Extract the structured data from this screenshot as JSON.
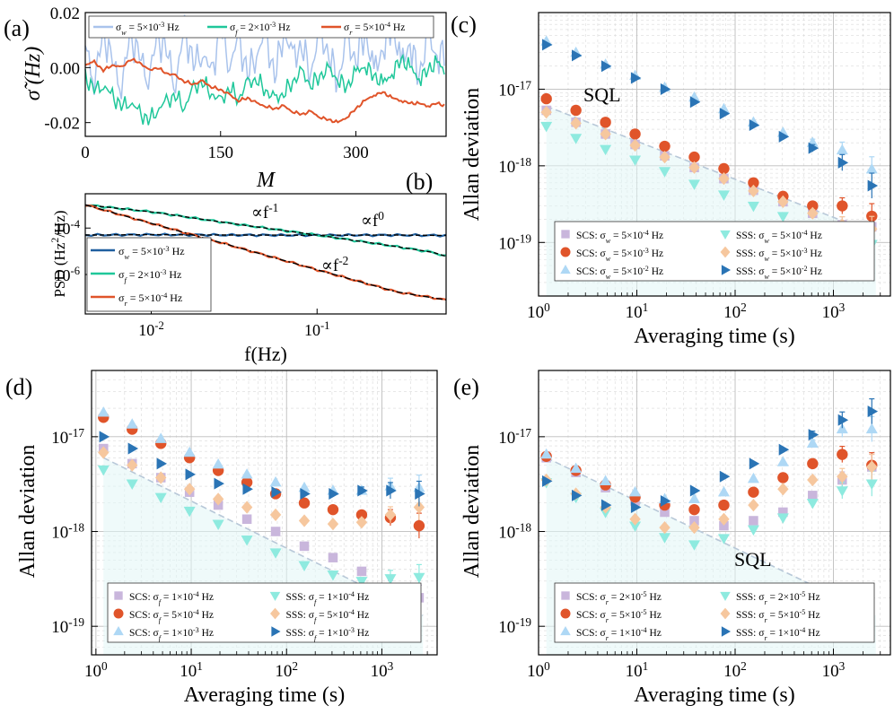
{
  "chart_data": [
    {
      "panel": "a",
      "type": "line",
      "panel_label": "(a)",
      "xlabel": "M",
      "ylabel": "σ̃ (Hz)",
      "xlim": [
        0,
        400
      ],
      "ylim": [
        -0.025,
        0.02
      ],
      "xticks": [
        0,
        150,
        300
      ],
      "yticks": [
        0.02,
        0.0,
        -0.02
      ],
      "xtick_labels": [
        "0",
        "150",
        "300"
      ],
      "ytick_labels": [
        "0.02",
        "0.00",
        "-0.02"
      ],
      "legend": [
        "σw = 5×10⁻³ Hz",
        "σf = 2×10⁻³ Hz",
        "σr = 5×10⁻⁴ Hz"
      ],
      "series": [
        {
          "name": "σw = 5×10⁻³ Hz",
          "color": "#a9c3ec",
          "x": [
            0,
            10,
            20,
            30,
            40,
            50,
            60,
            70,
            80,
            90,
            100,
            110,
            120,
            130,
            140,
            150,
            160,
            170,
            180,
            190,
            200,
            210,
            220,
            230,
            240,
            250,
            260,
            270,
            280,
            290,
            300,
            310,
            320,
            330,
            340,
            350,
            360,
            370,
            380,
            390,
            400
          ],
          "y": [
            0.008,
            -0.004,
            0.012,
            0.002,
            -0.006,
            0.011,
            0.004,
            -0.003,
            0.01,
            0.006,
            -0.005,
            0.013,
            0.001,
            0.007,
            -0.004,
            0.015,
            0.002,
            0.009,
            -0.002,
            0.006,
            0.011,
            -0.003,
            0.014,
            0.003,
            0.008,
            -0.001,
            0.012,
            0.005,
            -0.004,
            0.009,
            0.003,
            0.013,
            -0.002,
            0.007,
            0.016,
            0.001,
            0.009,
            -0.003,
            0.011,
            0.004,
            0.006
          ]
        },
        {
          "name": "σf = 2×10⁻³ Hz",
          "color": "#1fc79a",
          "x": [
            0,
            10,
            20,
            30,
            40,
            50,
            60,
            70,
            80,
            90,
            100,
            110,
            120,
            130,
            140,
            150,
            160,
            170,
            180,
            190,
            200,
            210,
            220,
            230,
            240,
            250,
            260,
            270,
            280,
            290,
            300,
            310,
            320,
            330,
            340,
            350,
            360,
            370,
            380,
            390,
            400
          ],
          "y": [
            -0.004,
            -0.008,
            -0.006,
            -0.011,
            -0.014,
            -0.012,
            -0.017,
            -0.019,
            -0.015,
            -0.013,
            -0.01,
            -0.014,
            -0.008,
            -0.005,
            -0.009,
            -0.013,
            -0.007,
            -0.011,
            -0.006,
            -0.004,
            -0.008,
            -0.012,
            -0.009,
            -0.005,
            -0.002,
            -0.006,
            -0.003,
            -0.001,
            -0.004,
            -0.007,
            -0.002,
            0.001,
            -0.003,
            -0.006,
            -0.002,
            0.003,
            0.0,
            -0.004,
            -0.001,
            0.002,
            -0.002
          ]
        },
        {
          "name": "σr = 5×10⁻⁴ Hz",
          "color": "#e0542a",
          "x": [
            0,
            10,
            20,
            30,
            40,
            50,
            60,
            70,
            80,
            90,
            100,
            110,
            120,
            130,
            140,
            150,
            160,
            170,
            180,
            190,
            200,
            210,
            220,
            230,
            240,
            250,
            260,
            270,
            280,
            290,
            300,
            310,
            320,
            330,
            340,
            350,
            360,
            370,
            380,
            390,
            400
          ],
          "y": [
            0.001,
            0.002,
            -0.001,
            0.001,
            0.0,
            0.003,
            0.002,
            -0.001,
            0.0,
            -0.002,
            -0.003,
            -0.005,
            -0.006,
            -0.005,
            -0.007,
            -0.008,
            -0.01,
            -0.012,
            -0.011,
            -0.013,
            -0.014,
            -0.015,
            -0.014,
            -0.016,
            -0.017,
            -0.016,
            -0.018,
            -0.019,
            -0.02,
            -0.018,
            -0.015,
            -0.012,
            -0.01,
            -0.009,
            -0.011,
            -0.012,
            -0.013,
            -0.013,
            -0.014,
            -0.013,
            -0.014
          ]
        }
      ]
    },
    {
      "panel": "b",
      "type": "line",
      "panel_label": "(b)",
      "xlabel": "f(Hz)",
      "ylabel": "PSD (Hz²/Hz)",
      "xscale": "log",
      "yscale": "log",
      "xlim": [
        0.004,
        0.6
      ],
      "ylim": [
        2e-08,
        0.003
      ],
      "xtick_labels": [
        "10⁻²",
        "10⁻¹"
      ],
      "ytick_labels": [
        "10⁻⁴",
        "10⁻⁶"
      ],
      "legend": [
        "σw = 5×10⁻³ Hz",
        "σf = 2×10⁻³ Hz",
        "σr = 5×10⁻⁴ Hz"
      ],
      "annotations": [
        "∝f⁻¹",
        "∝f⁰",
        "∝f⁻²"
      ],
      "series": [
        {
          "name": "σw = 5×10⁻³ Hz",
          "color": "#1f5f9f",
          "x": [
            0.004,
            0.01,
            0.03,
            0.1,
            0.3,
            0.6
          ],
          "y": [
            5e-05,
            5.2e-05,
            5e-05,
            4.9e-05,
            5e-05,
            4.8e-05
          ]
        },
        {
          "name": "σf = 2×10⁻³ Hz",
          "color": "#1fc79a",
          "x": [
            0.004,
            0.01,
            0.03,
            0.1,
            0.3,
            0.5,
            0.6
          ],
          "y": [
            0.001,
            0.0005,
            0.00016,
            5e-05,
            1.6e-05,
            9e-06,
            6e-06
          ]
        },
        {
          "name": "σr = 5×10⁻⁴ Hz",
          "color": "#e0542a",
          "x": [
            0.004,
            0.01,
            0.03,
            0.1,
            0.3,
            0.5,
            0.6
          ],
          "y": [
            0.001,
            0.00016,
            1.8e-05,
            1.6e-06,
            1.8e-07,
            1e-07,
            8e-08
          ]
        }
      ]
    },
    {
      "panel": "c",
      "type": "scatter",
      "panel_label": "(c)",
      "xlabel": "Averaging time (s)",
      "ylabel": "Allan deviation",
      "xscale": "log",
      "yscale": "log",
      "xlim": [
        1,
        3800
      ],
      "ylim": [
        2e-20,
        1e-16
      ],
      "xtick_labels": [
        "10⁰",
        "10¹",
        "10²",
        "10³"
      ],
      "ytick_labels": [
        "10⁻¹⁷",
        "10⁻¹⁸",
        "10⁻¹⁹"
      ],
      "annotations": [
        "SQL"
      ],
      "sql_line": {
        "x": [
          1.2,
          2700
        ],
        "y": [
          6e-18,
          1.3e-19
        ]
      },
      "x": [
        1.2,
        2.4,
        4.8,
        9.6,
        19.2,
        38.4,
        76.8,
        153.6,
        307,
        614,
        1229,
        2458
      ],
      "series": [
        {
          "name": "SCS: σw = 5×10⁻⁴ Hz",
          "marker": "square",
          "color": "#c9b6dc",
          "y": [
            5.3e-18,
            3.7e-18,
            2.6e-18,
            1.9e-18,
            1.35e-18,
            9.5e-19,
            6.8e-19,
            4.8e-19,
            3.4e-19,
            2.4e-19,
            1.7e-19,
            1.6e-19
          ]
        },
        {
          "name": "SCS: σw = 5×10⁻³ Hz",
          "marker": "circle",
          "color": "#e0542a",
          "y": [
            7.5e-18,
            5.3e-18,
            3.7e-18,
            2.6e-18,
            1.8e-18,
            1.3e-18,
            9.2e-19,
            6e-19,
            4e-19,
            3e-19,
            3e-19,
            2.2e-19
          ]
        },
        {
          "name": "SCS: σw = 5×10⁻² Hz",
          "marker": "triangle-up",
          "color": "#aed8f5",
          "y": [
            4.2e-17,
            3e-17,
            2.1e-17,
            1.5e-17,
            1.05e-17,
            7.8e-18,
            5.5e-18,
            3.7e-18,
            2.7e-18,
            2e-18,
            1.6e-18,
            9e-19
          ]
        },
        {
          "name": "SSS: σw = 5×10⁻⁴ Hz",
          "marker": "triangle-down",
          "color": "#8eeadf",
          "y": [
            3.3e-18,
            2.3e-18,
            1.65e-18,
            1.2e-18,
            8.5e-19,
            5.8e-19,
            4.2e-19,
            3e-19,
            2.2e-19,
            1.6e-19,
            1.15e-19,
            9.5e-20
          ]
        },
        {
          "name": "SSS: σw = 5×10⁻³ Hz",
          "marker": "diamond",
          "color": "#f6c79e",
          "y": [
            5e-18,
            3.6e-18,
            2.6e-18,
            1.85e-18,
            1.3e-18,
            9.5e-19,
            6.8e-19,
            4.7e-19,
            3.4e-19,
            2.4e-19,
            1.7e-19,
            1.5e-19
          ]
        },
        {
          "name": "SSS: σw = 5×10⁻² Hz",
          "marker": "triangle-right",
          "color": "#2a74b5",
          "y": [
            3.8e-17,
            2.75e-17,
            2e-17,
            1.4e-17,
            1e-17,
            6.8e-18,
            4.8e-18,
            3.4e-18,
            2.4e-18,
            1.7e-18,
            1.1e-18,
            5.5e-19
          ]
        }
      ]
    },
    {
      "panel": "d",
      "type": "scatter",
      "panel_label": "(d)",
      "xlabel": "Averaging time (s)",
      "ylabel": "Allan deviation",
      "xscale": "log",
      "yscale": "log",
      "xlim": [
        0.9,
        3800
      ],
      "ylim": [
        5e-20,
        5e-17
      ],
      "xtick_labels": [
        "10⁰",
        "10¹",
        "10²",
        "10³"
      ],
      "ytick_labels": [
        "10⁻¹⁷",
        "10⁻¹⁸",
        "10⁻¹⁹"
      ],
      "annotations": [
        "SQL"
      ],
      "sql_line": {
        "x": [
          1.2,
          2700
        ],
        "y": [
          6e-18,
          1.3e-19
        ]
      },
      "x": [
        1.2,
        2.4,
        4.8,
        9.6,
        19.2,
        38.4,
        76.8,
        153.6,
        307,
        614,
        1229,
        2458
      ],
      "series": [
        {
          "name": "SCS: σf = 1×10⁻⁴ Hz",
          "marker": "square",
          "color": "#c9b6dc",
          "y": [
            7.5e-18,
            5.2e-18,
            3.7e-18,
            2.6e-18,
            1.9e-18,
            1.35e-18,
            1e-18,
            7e-19,
            5.3e-19,
            3.8e-19,
            2.5e-19,
            2e-19
          ]
        },
        {
          "name": "SCS: σf = 5×10⁻⁴ Hz",
          "marker": "circle",
          "color": "#e0542a",
          "y": [
            1.6e-17,
            1.2e-17,
            8.5e-18,
            6e-18,
            4.4e-18,
            3.3e-18,
            2.5e-18,
            2e-18,
            1.7e-18,
            1.5e-18,
            1.4e-18,
            1.15e-18
          ]
        },
        {
          "name": "SCS: σf = 1×10⁻³ Hz",
          "marker": "triangle-up",
          "color": "#aed8f5",
          "y": [
            1.8e-17,
            1.35e-17,
            9.5e-18,
            6.8e-18,
            5.1e-18,
            4e-18,
            3.3e-18,
            2.9e-18,
            2.7e-18,
            2.7e-18,
            3e-18,
            2.9e-18
          ]
        },
        {
          "name": "SSS: σf = 1×10⁻⁴ Hz",
          "marker": "triangle-down",
          "color": "#8eeadf",
          "y": [
            4.5e-18,
            3.2e-18,
            2.3e-18,
            1.65e-18,
            1.2e-18,
            8.2e-19,
            6e-19,
            4.4e-19,
            3.5e-19,
            3e-19,
            3.2e-19,
            3.3e-19
          ]
        },
        {
          "name": "SSS: σf = 5×10⁻⁴ Hz",
          "marker": "diamond",
          "color": "#f6c79e",
          "y": [
            6.8e-18,
            5e-18,
            3.7e-18,
            2.8e-18,
            2.2e-18,
            1.8e-18,
            1.5e-18,
            1.3e-18,
            1.2e-18,
            1.25e-18,
            1.5e-18,
            1.8e-18
          ]
        },
        {
          "name": "SSS: σf = 1×10⁻³ Hz",
          "marker": "triangle-right",
          "color": "#2a74b5",
          "y": [
            1e-17,
            7.5e-18,
            5.2e-18,
            4e-18,
            3.2e-18,
            2.8e-18,
            2.6e-18,
            2.5e-18,
            2.5e-18,
            2.7e-18,
            2.7e-18,
            2.5e-18
          ]
        }
      ]
    },
    {
      "panel": "e",
      "type": "scatter",
      "panel_label": "(e)",
      "xlabel": "Averaging time (s)",
      "ylabel": "Allan deviation",
      "xscale": "log",
      "yscale": "log",
      "xlim": [
        1,
        3800
      ],
      "ylim": [
        5e-20,
        5e-17
      ],
      "xtick_labels": [
        "10⁰",
        "10¹",
        "10²",
        "10³"
      ],
      "ytick_labels": [
        "10⁻¹⁷",
        "10⁻¹⁸",
        "10⁻¹⁹"
      ],
      "annotations": [
        "SQL"
      ],
      "sql_line": {
        "x": [
          1.2,
          2700
        ],
        "y": [
          6e-18,
          1.3e-19
        ]
      },
      "x": [
        1.2,
        2.4,
        4.8,
        9.6,
        19.2,
        38.4,
        76.8,
        153.6,
        307,
        614,
        1229,
        2458
      ],
      "series": [
        {
          "name": "SCS: σr = 2×10⁻⁵ Hz",
          "marker": "square",
          "color": "#c9b6dc",
          "y": [
            6e-18,
            4.2e-18,
            2.9e-18,
            2.1e-18,
            1.6e-18,
            1.3e-18,
            1.15e-18,
            1.3e-18,
            1.6e-18,
            2.4e-18,
            3.5e-18,
            4.8e-18
          ]
        },
        {
          "name": "SCS: σr = 5×10⁻⁵ Hz",
          "marker": "circle",
          "color": "#e0542a",
          "y": [
            6.2e-18,
            4.4e-18,
            3.1e-18,
            2.3e-18,
            1.9e-18,
            1.7e-18,
            1.9e-18,
            2.6e-18,
            3.7e-18,
            5.2e-18,
            6.5e-18,
            5e-18
          ]
        },
        {
          "name": "SCS: σr = 1×10⁻⁴ Hz",
          "marker": "triangle-up",
          "color": "#aed8f5",
          "y": [
            6.5e-18,
            4.6e-18,
            3.4e-18,
            2.6e-18,
            2.2e-18,
            2.2e-18,
            2.6e-18,
            3.6e-18,
            5.4e-18,
            8.5e-18,
            1.2e-17,
            1.2e-17
          ]
        },
        {
          "name": "SSS: σr = 2×10⁻⁵ Hz",
          "marker": "triangle-down",
          "color": "#8eeadf",
          "y": [
            3.3e-18,
            2.3e-18,
            1.6e-18,
            1.15e-18,
            8.7e-19,
            7.3e-19,
            8.5e-19,
            1.05e-18,
            1.4e-18,
            2e-18,
            2.7e-18,
            3.2e-18
          ]
        },
        {
          "name": "SSS: σr = 5×10⁻⁵ Hz",
          "marker": "diamond",
          "color": "#f6c79e",
          "y": [
            3.5e-18,
            2.5e-18,
            1.8e-18,
            1.35e-18,
            1.1e-18,
            1.1e-18,
            1.35e-18,
            1.9e-18,
            2.8e-18,
            3.5e-18,
            3.8e-18,
            4.8e-18
          ]
        },
        {
          "name": "SSS: σr = 1×10⁻⁴ Hz",
          "marker": "triangle-right",
          "color": "#2a74b5",
          "y": [
            3.4e-18,
            2.4e-18,
            1.9e-18,
            1.8e-18,
            2.1e-18,
            2.7e-18,
            3.8e-18,
            5.2e-18,
            7.3e-18,
            1.05e-17,
            1.5e-17,
            1.85e-17
          ]
        }
      ]
    }
  ]
}
